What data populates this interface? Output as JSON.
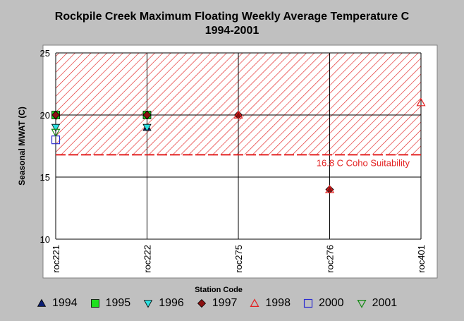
{
  "chart_data": {
    "type": "scatter",
    "title": "Rockpile Creek Maximum Floating Weekly Average Temperature C",
    "subtitle": "1994-2001",
    "xlabel": "Station Code",
    "ylabel": "Seasonal MWAT  (C)",
    "ylim": [
      10,
      25
    ],
    "yticks": [
      10,
      15,
      20,
      25
    ],
    "categories": [
      "roc221",
      "roc222",
      "roc275",
      "roc276",
      "roc401"
    ],
    "grid": true,
    "legend_position": "bottom",
    "threshold": {
      "value": 16.8,
      "label": "16.8 C Coho Suitability",
      "color": "#e32222"
    },
    "series": [
      {
        "name": "1994",
        "marker": "triangle-up-filled",
        "color": "#0b1e73",
        "values": [
          null,
          19,
          null,
          null,
          null
        ]
      },
      {
        "name": "1995",
        "marker": "square-filled",
        "color": "#1fe01f",
        "values": [
          20,
          20,
          null,
          null,
          null
        ]
      },
      {
        "name": "1996",
        "marker": "triangle-down-filled",
        "color": "#2ee0e0",
        "values": [
          19,
          19,
          null,
          null,
          null
        ]
      },
      {
        "name": "1997",
        "marker": "diamond-filled",
        "color": "#8b1010",
        "values": [
          20,
          20,
          20,
          14,
          null
        ]
      },
      {
        "name": "1998",
        "marker": "triangle-up-open",
        "color": "#e32222",
        "values": [
          null,
          null,
          20,
          14,
          21
        ]
      },
      {
        "name": "2000",
        "marker": "square-open",
        "color": "#2d2dd0",
        "values": [
          18,
          null,
          null,
          null,
          null
        ]
      },
      {
        "name": "2001",
        "marker": "triangle-down-open",
        "color": "#148a14",
        "values": [
          18.6,
          null,
          null,
          null,
          null
        ]
      }
    ]
  }
}
